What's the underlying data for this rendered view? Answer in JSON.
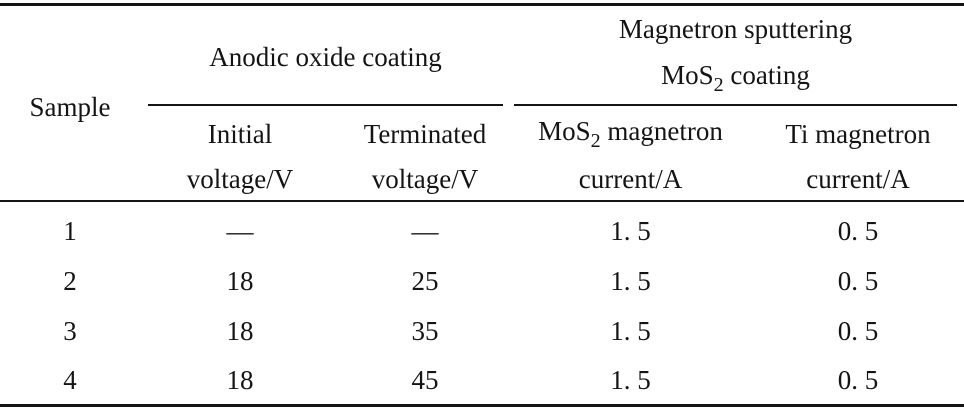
{
  "table": {
    "header": {
      "sample": "Sample",
      "group_anodic": "Anodic oxide coating",
      "group_magnetron_line1": "Magnetron sputtering",
      "group_magnetron_line2_prefix": "MoS",
      "group_magnetron_line2_sub": "2",
      "group_magnetron_line2_suffix": " coating",
      "initial_voltage_line1": "Initial",
      "initial_voltage_line2": "voltage/V",
      "terminated_voltage_line1": "Terminated",
      "terminated_voltage_line2": "voltage/V",
      "mos2_current_line1_prefix": "MoS",
      "mos2_current_line1_sub": "2",
      "mos2_current_line1_suffix": " magnetron",
      "mos2_current_line2": "current/A",
      "ti_current_line1": "Ti magnetron",
      "ti_current_line2": "current/A"
    },
    "rows": [
      [
        "1",
        "—",
        "—",
        "1. 5",
        "0. 5"
      ],
      [
        "2",
        "18",
        "25",
        "1. 5",
        "0. 5"
      ],
      [
        "3",
        "18",
        "35",
        "1. 5",
        "0. 5"
      ],
      [
        "4",
        "18",
        "45",
        "1. 5",
        "0. 5"
      ]
    ]
  }
}
